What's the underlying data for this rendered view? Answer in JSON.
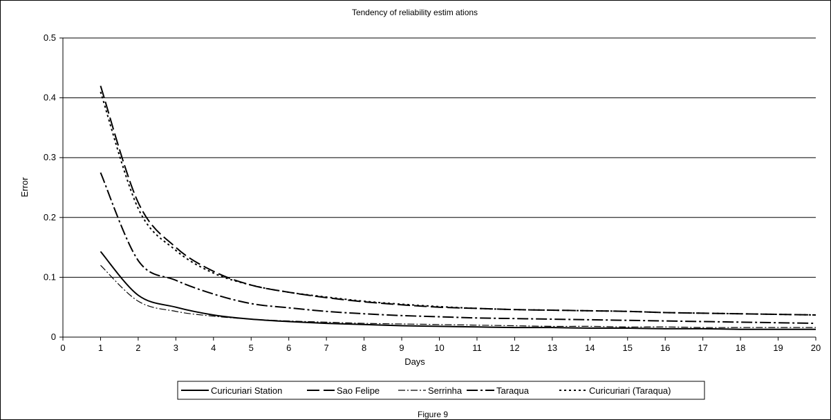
{
  "chart_data": {
    "type": "line",
    "title": "Tendency of reliability estim ations",
    "xlabel": "Days",
    "ylabel": "Error",
    "xlim": [
      0,
      20
    ],
    "ylim": [
      0,
      0.5
    ],
    "x_ticks": [
      0,
      1,
      2,
      3,
      4,
      5,
      6,
      7,
      8,
      9,
      10,
      11,
      12,
      13,
      14,
      15,
      16,
      17,
      18,
      19,
      20
    ],
    "y_ticks": [
      0,
      0.1,
      0.2,
      0.3,
      0.4,
      0.5
    ],
    "y_tick_labels": [
      "0",
      "0.1",
      "0.2",
      "0.3",
      "0.4",
      "0.5"
    ],
    "grid": "horizontal",
    "legend_position": "bottom",
    "caption": "Figure 9",
    "x": [
      1,
      2,
      3,
      4,
      5,
      6,
      7,
      8,
      9,
      10,
      11,
      12,
      13,
      14,
      15,
      16,
      17,
      18,
      19,
      20
    ],
    "series": [
      {
        "name": "Curicuriari Station",
        "dash": "",
        "width": 2,
        "values": [
          0.143,
          0.07,
          0.05,
          0.037,
          0.03,
          0.026,
          0.023,
          0.021,
          0.019,
          0.018,
          0.017,
          0.016,
          0.016,
          0.015,
          0.015,
          0.014,
          0.014,
          0.013,
          0.013,
          0.013
        ]
      },
      {
        "name": "Sao Felipe",
        "dash": "18,6",
        "width": 2,
        "values": [
          0.42,
          0.225,
          0.15,
          0.11,
          0.087,
          0.075,
          0.066,
          0.059,
          0.054,
          0.05,
          0.048,
          0.046,
          0.045,
          0.044,
          0.043,
          0.041,
          0.04,
          0.039,
          0.038,
          0.037
        ]
      },
      {
        "name": "Serrinha",
        "dash": "10,3,2,3",
        "width": 1.2,
        "values": [
          0.12,
          0.06,
          0.043,
          0.035,
          0.03,
          0.027,
          0.025,
          0.023,
          0.022,
          0.021,
          0.02,
          0.019,
          0.018,
          0.018,
          0.017,
          0.017,
          0.016,
          0.016,
          0.016,
          0.016
        ]
      },
      {
        "name": "Taraqua",
        "dash": "16,4,3,4",
        "width": 2,
        "values": [
          0.275,
          0.128,
          0.095,
          0.072,
          0.056,
          0.049,
          0.043,
          0.039,
          0.036,
          0.034,
          0.032,
          0.031,
          0.03,
          0.029,
          0.028,
          0.027,
          0.026,
          0.025,
          0.024,
          0.023
        ]
      },
      {
        "name": "Curicuriari (Taraqua)",
        "dash": "3,4",
        "width": 2,
        "values": [
          0.41,
          0.215,
          0.145,
          0.107,
          0.087,
          0.075,
          0.067,
          0.06,
          0.055,
          0.051,
          0.048,
          0.046,
          0.045,
          0.044,
          0.043,
          0.041,
          0.04,
          0.039,
          0.038,
          0.037
        ]
      }
    ]
  }
}
